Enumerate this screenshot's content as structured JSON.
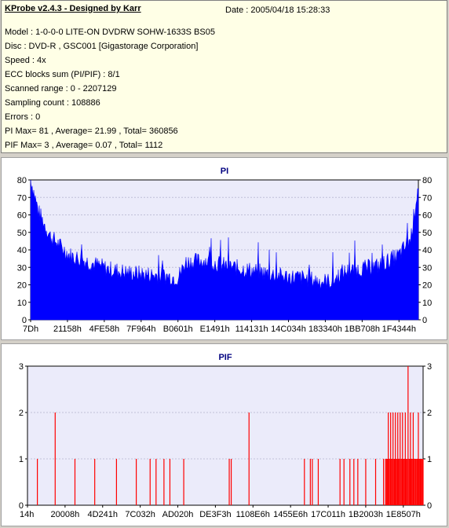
{
  "header": {
    "title": "KProbe v2.4.3 - Designed by Karr",
    "date": "Date : 2005/04/18 15:28:33"
  },
  "info_lines": [
    "Model : 1-0-0-0 LITE-ON DVDRW SOHW-1633S BS05",
    "Disc : DVD-R , GSC001 [Gigastorage Corporation]",
    "Speed : 4x",
    "ECC blocks sum (PI/PIF) : 8/1",
    "Scanned range : 0 - 2207129",
    "Sampling count : 108886",
    "Errors : 0",
    "PI Max= 81 , Average= 21.99 , Total= 360856",
    "PIF Max= 3 , Average= 0.07 , Total= 1112"
  ],
  "colors": {
    "pi_series": "#0000ff",
    "pif_series": "#ff0000",
    "plot_bg": "#ebebfa",
    "title_color": "#000080"
  },
  "chart_data": [
    {
      "type": "area",
      "title": "PI",
      "ylim": [
        0,
        80
      ],
      "y_ticks": [
        0,
        10,
        20,
        30,
        40,
        50,
        60,
        70,
        80
      ],
      "x_tick_labels": [
        "7Dh",
        "21158h",
        "4FE58h",
        "7F964h",
        "B0601h",
        "E1491h",
        "114131h",
        "14C034h",
        "183340h",
        "1BB708h",
        "1F4344h"
      ],
      "grid": true,
      "series_profile": {
        "x": [
          0,
          0.02,
          0.05,
          0.1,
          0.15,
          0.2,
          0.25,
          0.3,
          0.35,
          0.38,
          0.4,
          0.45,
          0.5,
          0.55,
          0.6,
          0.65,
          0.7,
          0.75,
          0.78,
          0.8,
          0.85,
          0.9,
          0.95,
          0.98,
          1.0
        ],
        "y": [
          81,
          62,
          48,
          37,
          33,
          29,
          27,
          26,
          25,
          24,
          33,
          34,
          31,
          29,
          27,
          25,
          24,
          22,
          22,
          27,
          29,
          31,
          37,
          46,
          78
        ]
      },
      "stats": {
        "max": 81,
        "average": 21.99,
        "total": 360856
      }
    },
    {
      "type": "bar",
      "title": "PIF",
      "ylim": [
        0,
        3
      ],
      "y_ticks": [
        0,
        1,
        2,
        3
      ],
      "x_tick_labels": [
        "14h",
        "20008h",
        "4D241h",
        "7C032h",
        "AD020h",
        "DE3F3h",
        "1108E6h",
        "1455E6h",
        "17C011h",
        "1B2003h",
        "1E8507h"
      ],
      "grid": true,
      "points": [
        {
          "x": 0.025,
          "y": 1
        },
        {
          "x": 0.07,
          "y": 2
        },
        {
          "x": 0.12,
          "y": 1
        },
        {
          "x": 0.17,
          "y": 1
        },
        {
          "x": 0.225,
          "y": 1
        },
        {
          "x": 0.275,
          "y": 1
        },
        {
          "x": 0.31,
          "y": 1
        },
        {
          "x": 0.325,
          "y": 1
        },
        {
          "x": 0.345,
          "y": 1
        },
        {
          "x": 0.36,
          "y": 1
        },
        {
          "x": 0.395,
          "y": 1
        },
        {
          "x": 0.51,
          "y": 1
        },
        {
          "x": 0.515,
          "y": 1
        },
        {
          "x": 0.56,
          "y": 2
        },
        {
          "x": 0.7,
          "y": 1
        },
        {
          "x": 0.715,
          "y": 1
        },
        {
          "x": 0.72,
          "y": 1
        },
        {
          "x": 0.735,
          "y": 1
        },
        {
          "x": 0.79,
          "y": 1
        },
        {
          "x": 0.8,
          "y": 1
        },
        {
          "x": 0.815,
          "y": 1
        },
        {
          "x": 0.825,
          "y": 1
        },
        {
          "x": 0.835,
          "y": 1
        },
        {
          "x": 0.855,
          "y": 1
        },
        {
          "x": 0.88,
          "y": 1
        },
        {
          "x": 0.9,
          "y": 1
        },
        {
          "x": 0.912,
          "y": 2
        },
        {
          "x": 0.918,
          "y": 2
        },
        {
          "x": 0.924,
          "y": 2
        },
        {
          "x": 0.93,
          "y": 2
        },
        {
          "x": 0.936,
          "y": 2
        },
        {
          "x": 0.942,
          "y": 2
        },
        {
          "x": 0.948,
          "y": 2
        },
        {
          "x": 0.955,
          "y": 2
        },
        {
          "x": 0.962,
          "y": 3
        },
        {
          "x": 0.968,
          "y": 2
        },
        {
          "x": 0.975,
          "y": 2
        },
        {
          "x": 0.982,
          "y": 1
        },
        {
          "x": 0.988,
          "y": 2
        },
        {
          "x": 0.993,
          "y": 1
        },
        {
          "x": 0.998,
          "y": 1
        }
      ],
      "dense_region": {
        "x_start": 0.905,
        "x_end": 1.0,
        "y": 1
      },
      "stats": {
        "max": 3,
        "average": 0.07,
        "total": 1112
      }
    }
  ]
}
